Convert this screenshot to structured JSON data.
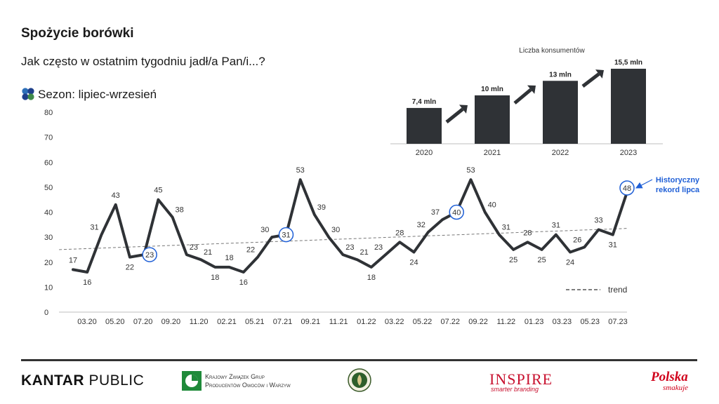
{
  "header": {
    "title": "Spożycie borówki",
    "question": "Jak często w ostatnim tygodniu jadł/a Pan/i...?",
    "season": "Sezon: lipiec-wrzesień"
  },
  "colors": {
    "line": "#2f3236",
    "highlight": "#1f5fd6",
    "bar": "#2f3236",
    "trend": "#777777"
  },
  "chart_data": [
    {
      "type": "line",
      "x_tick_labels": [
        "03.20",
        "05.20",
        "07.20",
        "09.20",
        "11.20",
        "02.21",
        "05.21",
        "07.21",
        "09.21",
        "11.21",
        "01.22",
        "03.22",
        "05.22",
        "07.22",
        "09.22",
        "11.22",
        "01.23",
        "03.23",
        "05.23",
        "07.23"
      ],
      "y_ticks": [
        0,
        10,
        20,
        30,
        40,
        50,
        60,
        70,
        80
      ],
      "ylim": [
        0,
        80
      ],
      "series": [
        {
          "values": [
            17,
            16,
            31,
            43,
            22,
            23,
            45,
            38,
            23,
            21,
            18,
            18,
            16,
            22,
            30,
            31,
            53,
            39,
            30,
            23,
            21,
            18,
            23,
            28,
            24,
            32,
            37,
            40,
            53,
            40,
            31,
            25,
            28,
            25,
            31,
            24,
            26,
            33,
            31,
            48
          ],
          "highlighted": [
            5,
            15,
            27,
            39
          ]
        }
      ],
      "trend": {
        "label": "trend",
        "start": 25,
        "end": 33.5
      },
      "annotation": "Historyczny rekord lipca"
    },
    {
      "type": "bar",
      "title": "Liczba konsumentów",
      "categories": [
        "2020",
        "2021",
        "2022",
        "2023"
      ],
      "values": [
        7.4,
        10,
        13,
        15.5
      ],
      "value_labels": [
        "7,4 mln",
        "10 mln",
        "13 mln",
        "15,5 mln"
      ]
    }
  ],
  "footer": {
    "kantar_bold": "KANTAR",
    "kantar_light": " PUBLIC",
    "kzg_line1": "Krajowy Związek Grup",
    "kzg_line2": "Producentów Owoców i Warzyw",
    "inspire": "INSPIRE",
    "inspire_sub": "smarter branding",
    "polska": "Polska",
    "smakuje": "smakuje"
  }
}
